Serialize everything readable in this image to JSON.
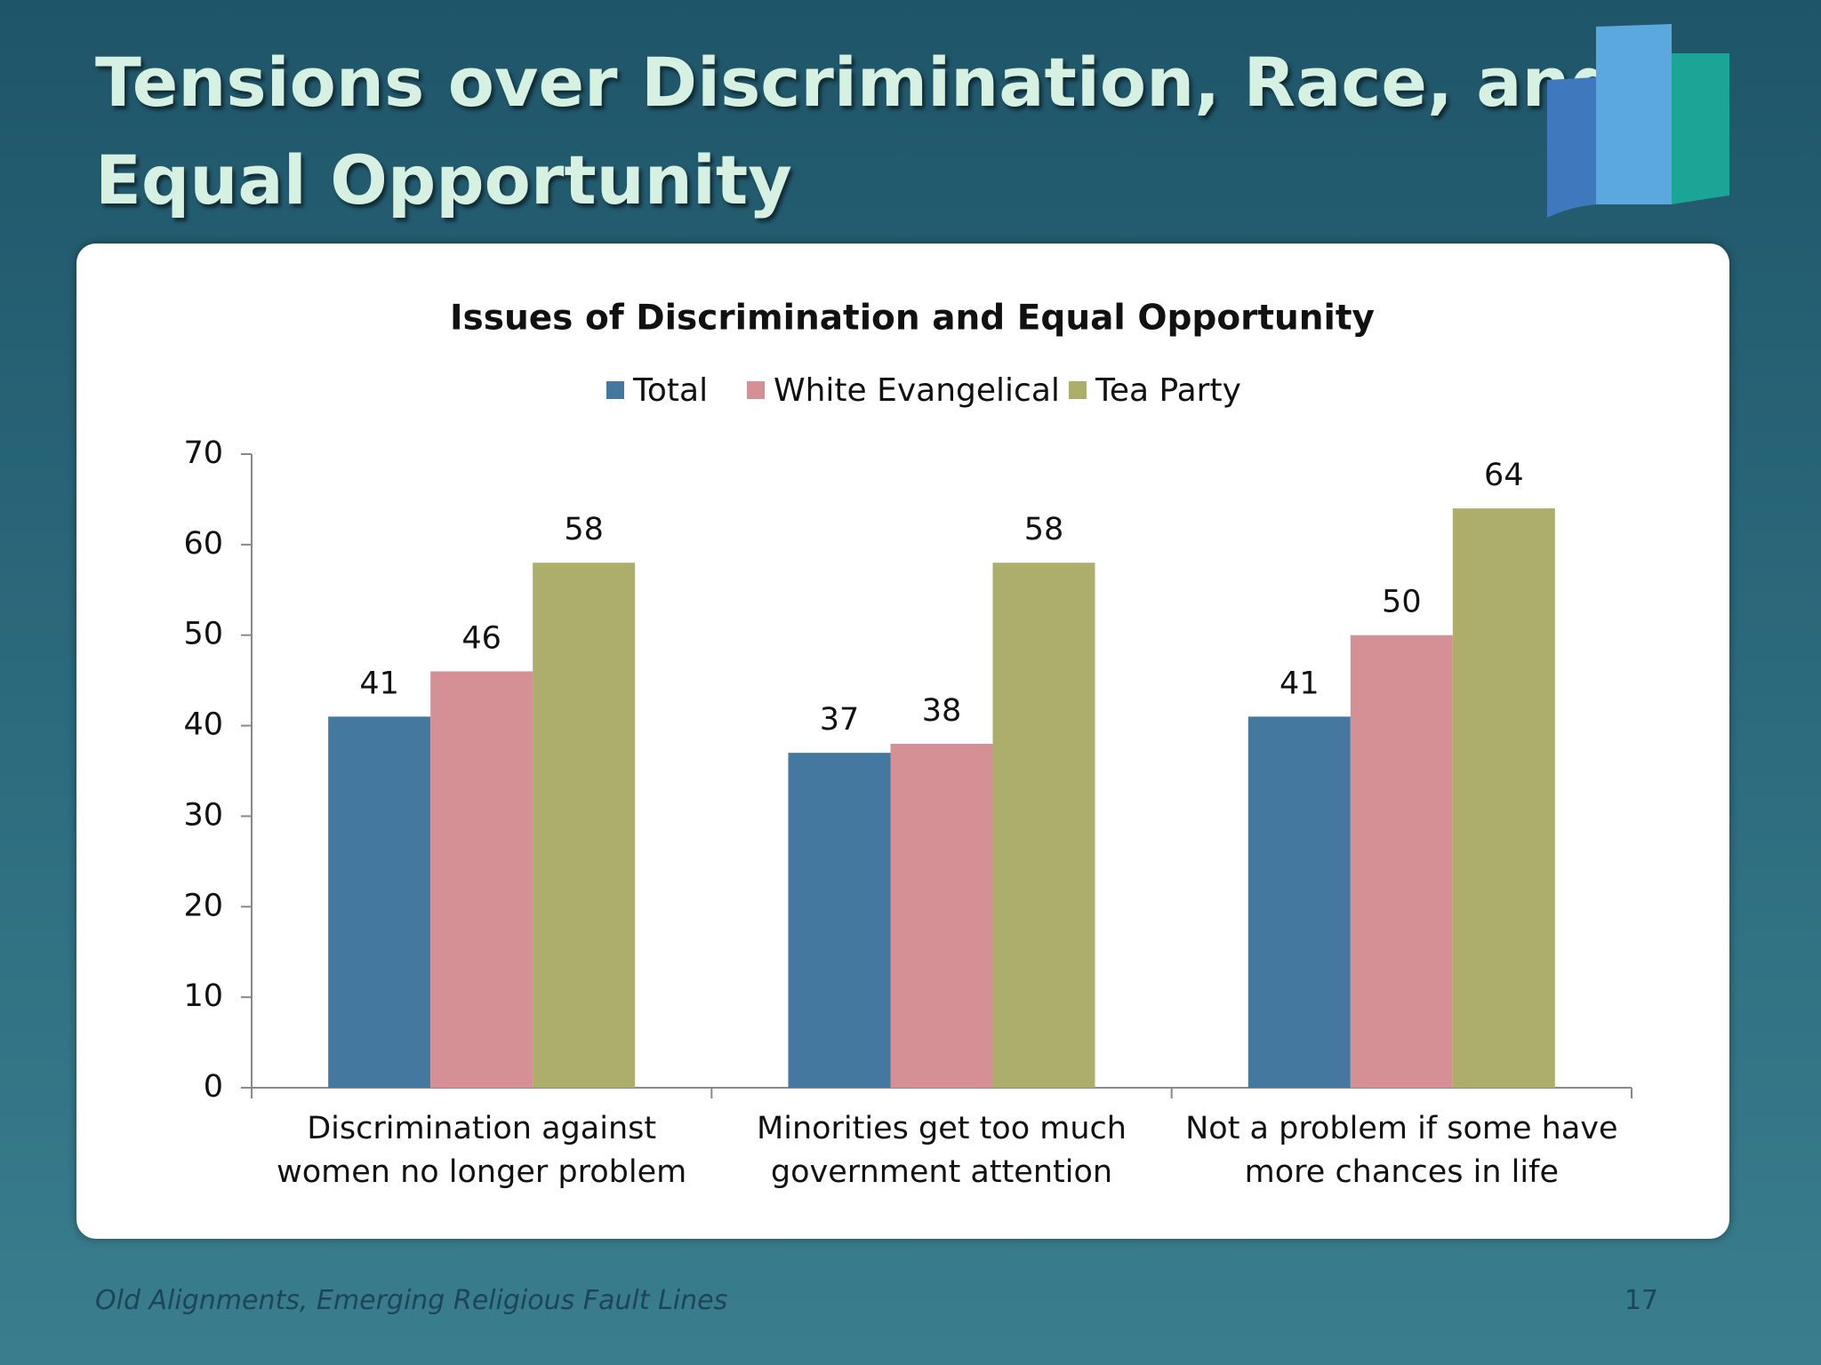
{
  "slide_title_lines": [
    "Tensions over Discrimination, Race, and",
    "Equal Opportunity"
  ],
  "footer": "Old Alignments, Emerging Religious Fault Lines",
  "page_number": "17",
  "chart_data": {
    "type": "bar",
    "title": "Issues of Discrimination and Equal Opportunity",
    "categories": [
      "Discrimination against women no longer problem",
      "Minorities get too much government attention",
      "Not a problem if some have more chances in life"
    ],
    "series": [
      {
        "name": "Total",
        "color": "#44789f",
        "values": [
          41,
          37,
          41
        ]
      },
      {
        "name": "White Evangelical",
        "color": "#d49095",
        "values": [
          46,
          38,
          50
        ]
      },
      {
        "name": "Tea Party",
        "color": "#adad6c",
        "values": [
          58,
          58,
          64
        ]
      }
    ],
    "ylim": [
      0,
      70
    ],
    "yticks": [
      0,
      10,
      20,
      30,
      40,
      50,
      60,
      70
    ],
    "legend": "top"
  }
}
